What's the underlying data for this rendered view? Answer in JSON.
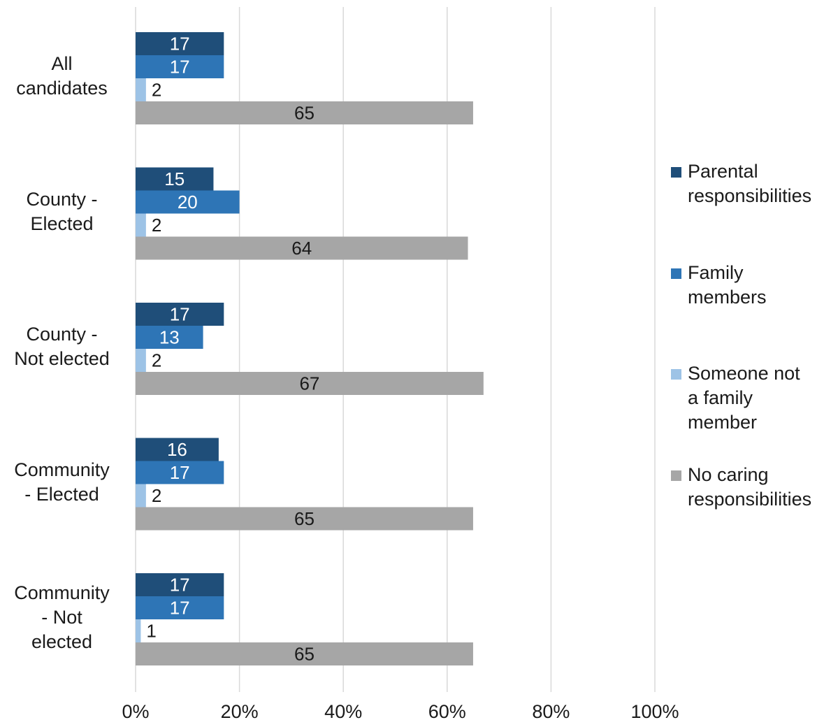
{
  "chart_data": {
    "type": "bar",
    "orientation": "horizontal",
    "categories": [
      "All\ncandidates",
      "County -\nElected",
      "County -\nNot elected",
      "Community\n- Elected",
      "Community\n- Not\nelected"
    ],
    "series": [
      {
        "name": "Parental\nresponsibilities",
        "color": "#1f4e79",
        "label_color": "#ffffff",
        "values": [
          17,
          15,
          17,
          16,
          17
        ]
      },
      {
        "name": "Family\nmembers",
        "color": "#2e75b6",
        "label_color": "#ffffff",
        "values": [
          17,
          20,
          13,
          17,
          17
        ]
      },
      {
        "name": " Someone not\na family\nmember",
        "color": "#9dc3e6",
        "label_color": "#1a1a1a",
        "values": [
          2,
          2,
          2,
          2,
          1
        ]
      },
      {
        "name": "No caring\nresponsibilities",
        "color": "#a6a6a6",
        "label_color": "#1a1a1a",
        "values": [
          65,
          64,
          67,
          65,
          65
        ]
      }
    ],
    "value_labels": [
      [
        "17",
        "15",
        "17",
        "16",
        "17"
      ],
      [
        "17",
        "20",
        "13",
        "17",
        "17"
      ],
      [
        "2",
        "2",
        "2",
        "2",
        "1"
      ],
      [
        "65",
        "64",
        "67",
        "65",
        "65"
      ]
    ],
    "xlim": [
      0,
      100
    ],
    "xticks": [
      0,
      20,
      40,
      60,
      80,
      100
    ],
    "xtick_labels": [
      "0%",
      "20%",
      "40%",
      "60%",
      "80%",
      "100%"
    ],
    "grid": "vertical",
    "legend_position": "right",
    "title": "",
    "xlabel": "",
    "ylabel": ""
  }
}
